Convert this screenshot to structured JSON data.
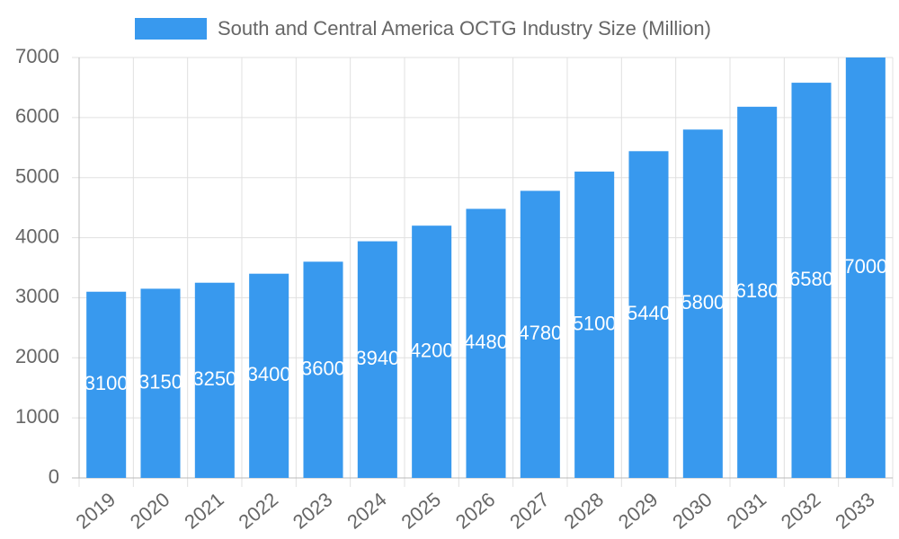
{
  "chart_data": {
    "type": "bar",
    "categories": [
      "2019",
      "2020",
      "2021",
      "2022",
      "2023",
      "2024",
      "2025",
      "2026",
      "2027",
      "2028",
      "2029",
      "2030",
      "2031",
      "2032",
      "2033"
    ],
    "series": [
      {
        "name": "South and Central America OCTG Industry Size (Million)",
        "color": "#3899ee",
        "values": [
          3100,
          3150,
          3250,
          3400,
          3600,
          3940,
          4200,
          4480,
          4780,
          5100,
          5440,
          5800,
          6180,
          6580,
          7000
        ]
      }
    ],
    "ylim": [
      0,
      7000
    ],
    "yticks": [
      0,
      1000,
      2000,
      3000,
      4000,
      5000,
      6000,
      7000
    ],
    "grid": true,
    "legend": "top"
  }
}
